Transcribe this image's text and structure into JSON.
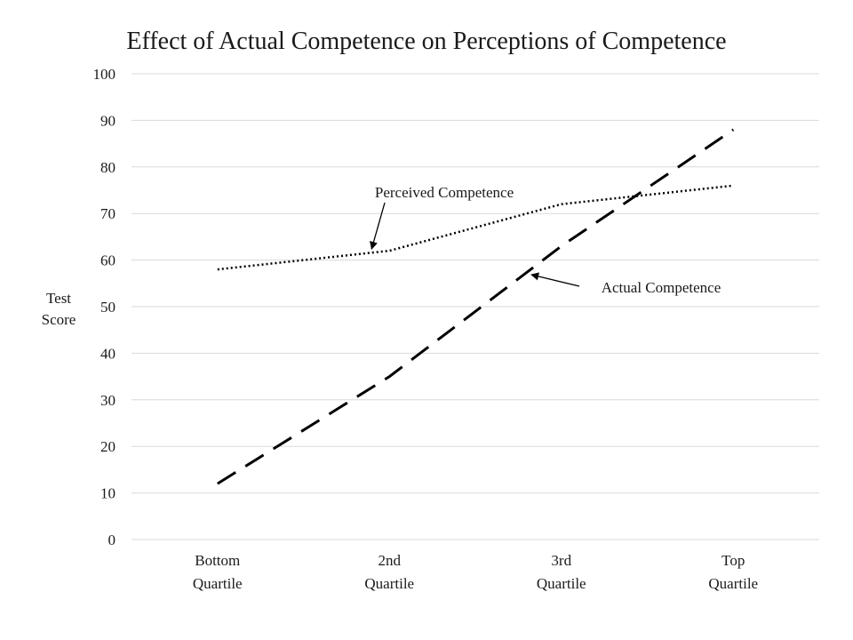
{
  "chart_data": {
    "type": "line",
    "title": "Effect of Actual Competence on Perceptions of Competence",
    "ylabel": [
      "Test",
      "Score"
    ],
    "xlabel": "",
    "ylim": [
      0,
      100
    ],
    "yticks": [
      "0",
      "10",
      "20",
      "30",
      "40",
      "50",
      "60",
      "70",
      "80",
      "90",
      "100"
    ],
    "categories": [
      [
        "Bottom",
        "Quartile"
      ],
      [
        "2nd",
        "Quartile"
      ],
      [
        "3rd",
        "Quartile"
      ],
      [
        "Top",
        "Quartile"
      ]
    ],
    "grid": true,
    "series": [
      {
        "name": "Perceived Competence",
        "style": "dotted",
        "color": "#000000",
        "values": [
          58,
          62,
          72,
          76
        ]
      },
      {
        "name": "Actual Competence",
        "style": "dashed",
        "color": "#000000",
        "values": [
          12,
          35,
          63,
          88
        ]
      }
    ],
    "annotations": [
      {
        "text": "Perceived Competence",
        "series": "Perceived Competence"
      },
      {
        "text": "Actual Competence",
        "series": "Actual Competence"
      }
    ]
  }
}
